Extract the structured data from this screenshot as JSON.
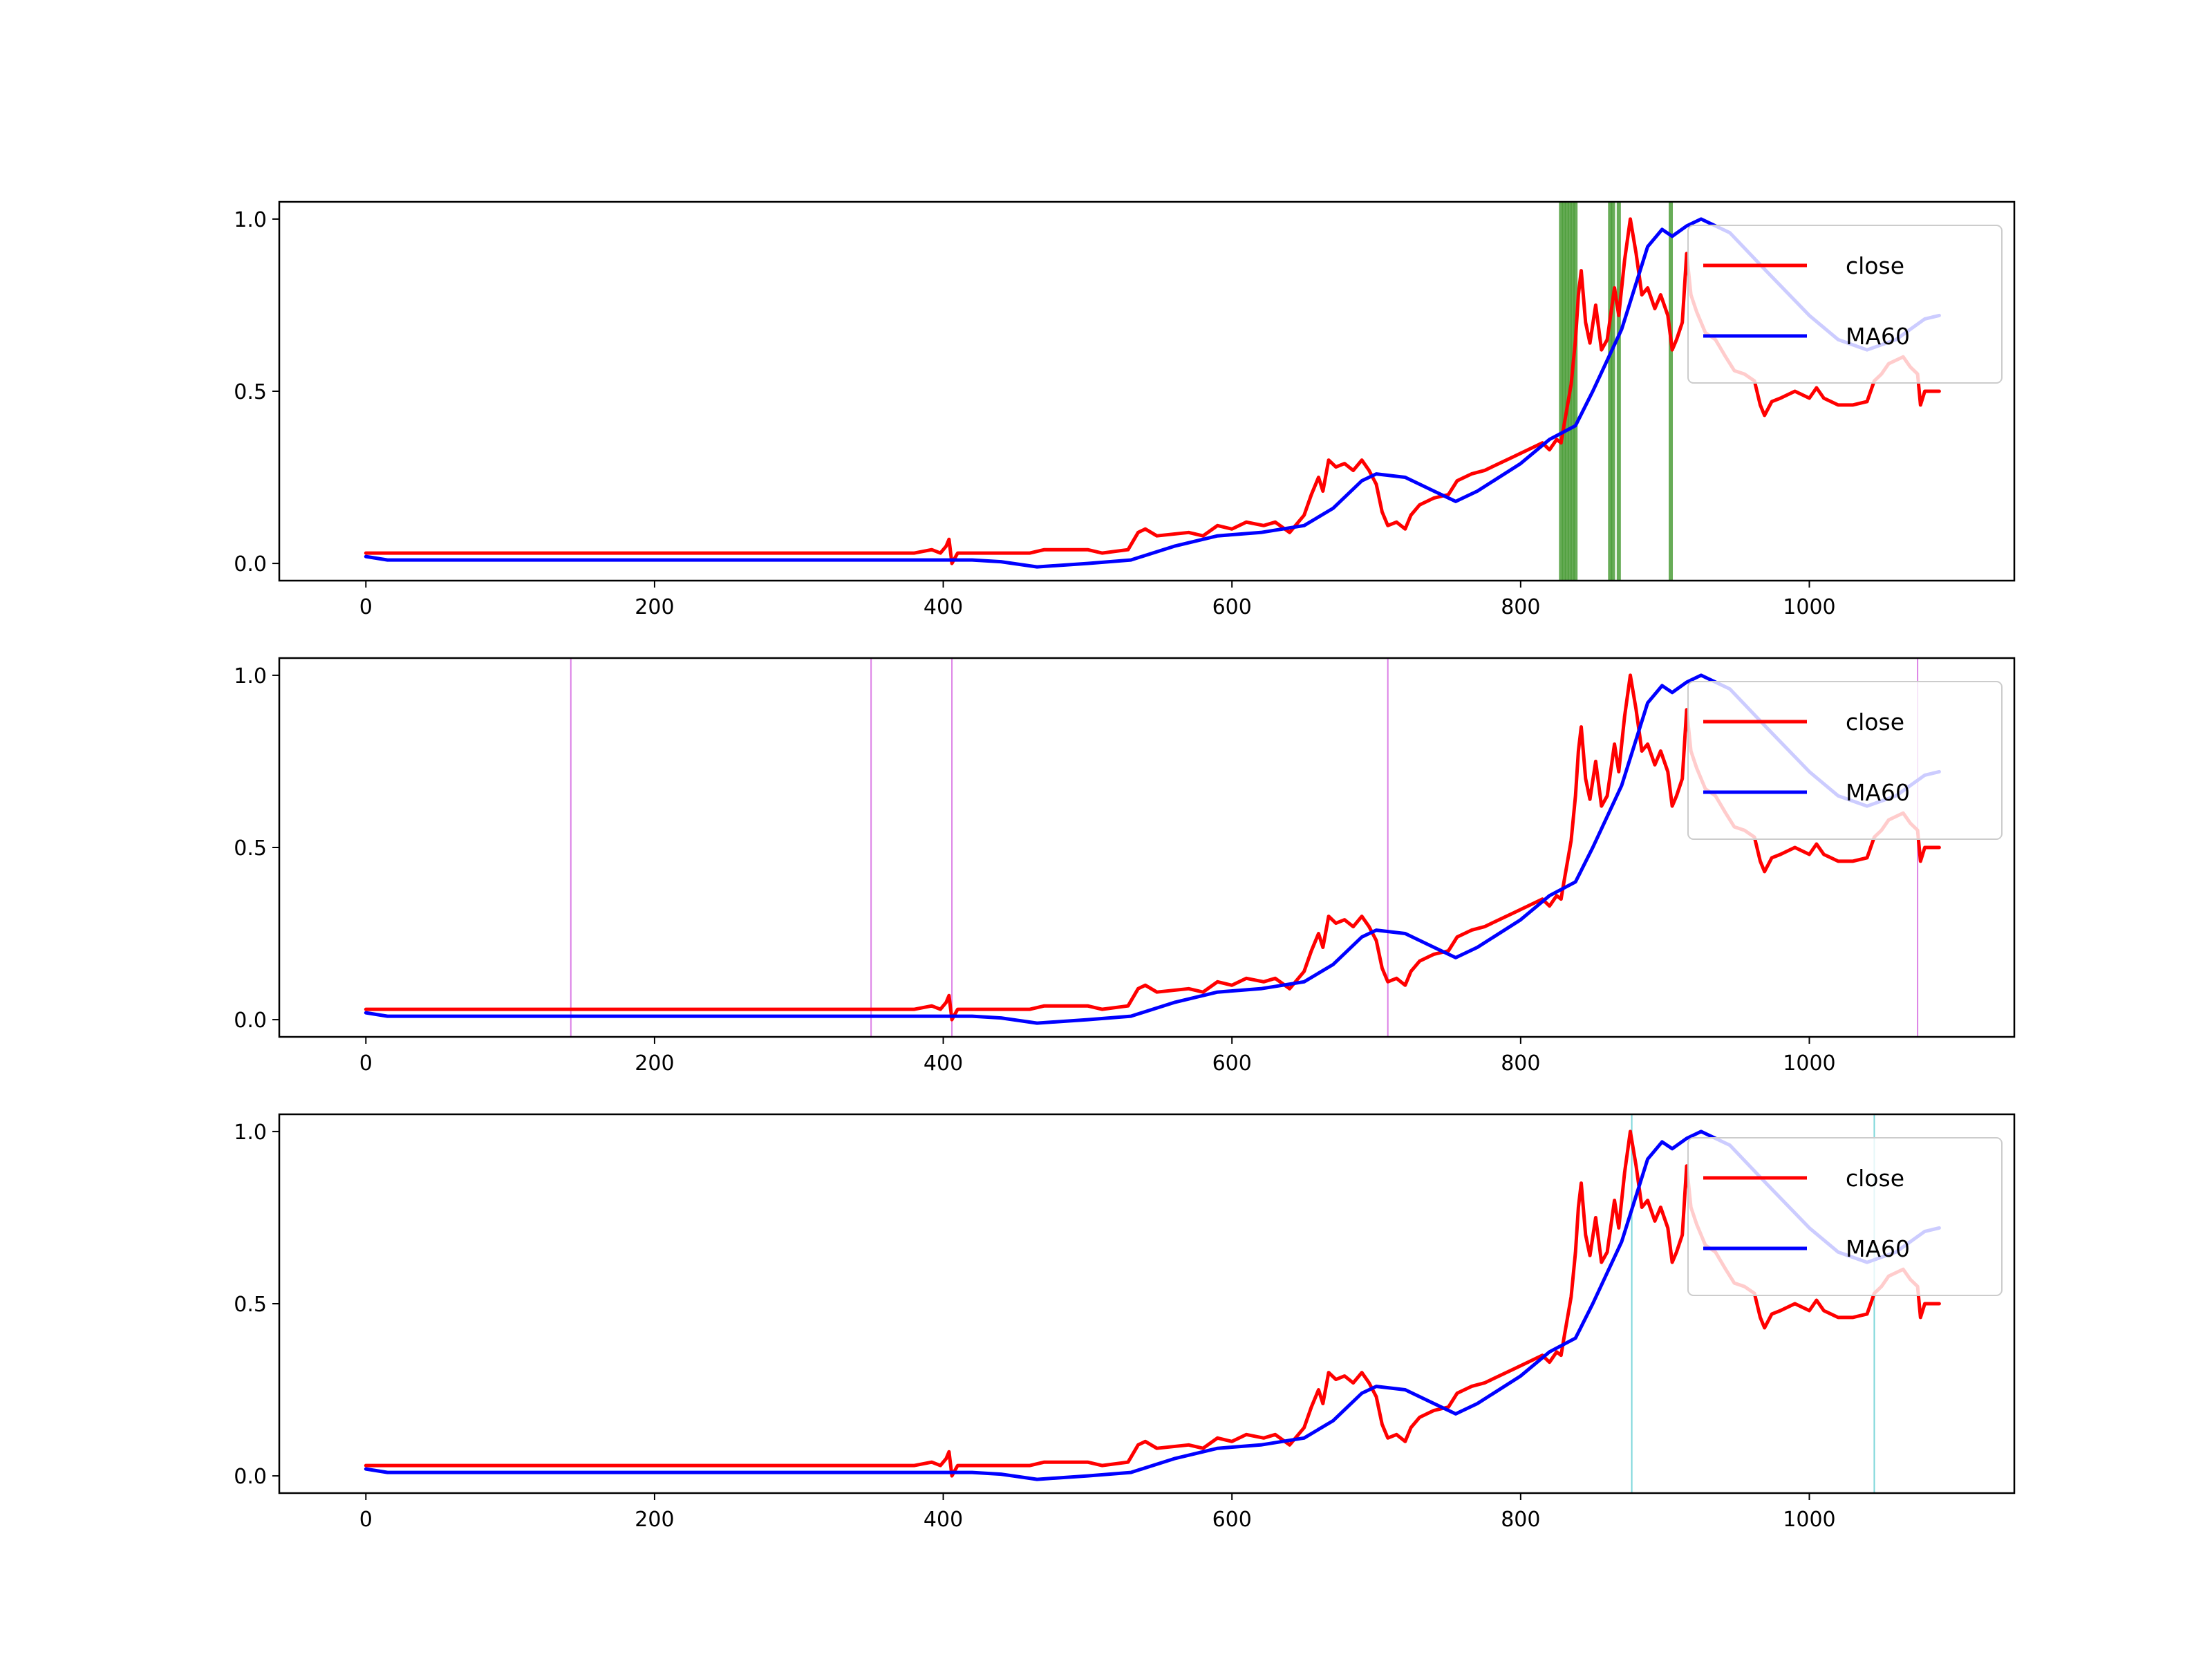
{
  "chart_data": [
    {
      "type": "line",
      "xlim": [
        -60,
        1142
      ],
      "ylim": [
        -0.05,
        1.05
      ],
      "xticks": [
        0,
        200,
        400,
        600,
        800,
        1000
      ],
      "xtick_labels": [
        "0",
        "200",
        "400",
        "600",
        "800",
        "1000"
      ],
      "yticks": [
        0.0,
        0.5,
        1.0
      ],
      "ytick_labels": [
        "0.0",
        "0.5",
        "1.0"
      ],
      "grid": false,
      "legend": "upper right",
      "highlight_color": "#4c9e3a",
      "highlight_x": [
        828,
        830,
        832,
        834,
        836,
        838,
        862,
        864,
        868,
        904
      ],
      "series": [
        {
          "name": "close",
          "color": "#ff0000"
        },
        {
          "name": "MA60",
          "color": "#0000ff"
        }
      ]
    },
    {
      "type": "line",
      "xlim": [
        -60,
        1142
      ],
      "ylim": [
        -0.05,
        1.05
      ],
      "xticks": [
        0,
        200,
        400,
        600,
        800,
        1000
      ],
      "xtick_labels": [
        "0",
        "200",
        "400",
        "600",
        "800",
        "1000"
      ],
      "yticks": [
        0.0,
        0.5,
        1.0
      ],
      "ytick_labels": [
        "0.0",
        "0.5",
        "1.0"
      ],
      "grid": false,
      "legend": "upper right",
      "highlight_color": "#d873e3",
      "highlight_x": [
        142,
        350,
        406,
        708,
        1075
      ],
      "series": [
        {
          "name": "close",
          "color": "#ff0000"
        },
        {
          "name": "MA60",
          "color": "#0000ff"
        }
      ]
    },
    {
      "type": "line",
      "xlim": [
        -60,
        1142
      ],
      "ylim": [
        -0.05,
        1.05
      ],
      "xticks": [
        0,
        200,
        400,
        600,
        800,
        1000
      ],
      "xtick_labels": [
        "0",
        "200",
        "400",
        "600",
        "800",
        "1000"
      ],
      "yticks": [
        0.0,
        0.5,
        1.0
      ],
      "ytick_labels": [
        "0.0",
        "0.5",
        "1.0"
      ],
      "grid": false,
      "legend": "upper right",
      "highlight_color": "#6fd3d6",
      "highlight_x": [
        877,
        1045
      ],
      "series": [
        {
          "name": "close",
          "color": "#ff0000"
        },
        {
          "name": "MA60",
          "color": "#0000ff"
        }
      ]
    }
  ],
  "series_values": {
    "close": [
      [
        0,
        0.03
      ],
      [
        380,
        0.03
      ],
      [
        392,
        0.04
      ],
      [
        398,
        0.03
      ],
      [
        402,
        0.05
      ],
      [
        404,
        0.07
      ],
      [
        406,
        0.0
      ],
      [
        410,
        0.03
      ],
      [
        460,
        0.03
      ],
      [
        470,
        0.04
      ],
      [
        500,
        0.04
      ],
      [
        510,
        0.03
      ],
      [
        528,
        0.04
      ],
      [
        535,
        0.09
      ],
      [
        540,
        0.1
      ],
      [
        548,
        0.08
      ],
      [
        570,
        0.09
      ],
      [
        580,
        0.08
      ],
      [
        590,
        0.11
      ],
      [
        600,
        0.1
      ],
      [
        610,
        0.12
      ],
      [
        622,
        0.11
      ],
      [
        630,
        0.12
      ],
      [
        640,
        0.09
      ],
      [
        650,
        0.14
      ],
      [
        655,
        0.2
      ],
      [
        660,
        0.25
      ],
      [
        663,
        0.21
      ],
      [
        667,
        0.3
      ],
      [
        672,
        0.28
      ],
      [
        678,
        0.29
      ],
      [
        684,
        0.27
      ],
      [
        690,
        0.3
      ],
      [
        695,
        0.27
      ],
      [
        700,
        0.23
      ],
      [
        704,
        0.15
      ],
      [
        708,
        0.11
      ],
      [
        714,
        0.12
      ],
      [
        720,
        0.1
      ],
      [
        724,
        0.14
      ],
      [
        730,
        0.17
      ],
      [
        740,
        0.19
      ],
      [
        750,
        0.2
      ],
      [
        756,
        0.24
      ],
      [
        766,
        0.26
      ],
      [
        775,
        0.27
      ],
      [
        785,
        0.29
      ],
      [
        795,
        0.31
      ],
      [
        805,
        0.33
      ],
      [
        815,
        0.35
      ],
      [
        820,
        0.33
      ],
      [
        825,
        0.36
      ],
      [
        828,
        0.35
      ],
      [
        830,
        0.4
      ],
      [
        835,
        0.52
      ],
      [
        838,
        0.65
      ],
      [
        840,
        0.78
      ],
      [
        842,
        0.85
      ],
      [
        845,
        0.7
      ],
      [
        848,
        0.64
      ],
      [
        852,
        0.75
      ],
      [
        856,
        0.62
      ],
      [
        860,
        0.65
      ],
      [
        865,
        0.8
      ],
      [
        868,
        0.72
      ],
      [
        872,
        0.88
      ],
      [
        876,
        1.0
      ],
      [
        880,
        0.9
      ],
      [
        884,
        0.78
      ],
      [
        888,
        0.8
      ],
      [
        893,
        0.74
      ],
      [
        897,
        0.78
      ],
      [
        902,
        0.72
      ],
      [
        905,
        0.62
      ],
      [
        908,
        0.65
      ],
      [
        912,
        0.7
      ],
      [
        915,
        0.9
      ],
      [
        918,
        0.78
      ],
      [
        922,
        0.73
      ],
      [
        928,
        0.67
      ],
      [
        935,
        0.65
      ],
      [
        942,
        0.6
      ],
      [
        948,
        0.56
      ],
      [
        955,
        0.55
      ],
      [
        962,
        0.53
      ],
      [
        966,
        0.46
      ],
      [
        969,
        0.43
      ],
      [
        974,
        0.47
      ],
      [
        980,
        0.48
      ],
      [
        990,
        0.5
      ],
      [
        1000,
        0.48
      ],
      [
        1005,
        0.51
      ],
      [
        1010,
        0.48
      ],
      [
        1020,
        0.46
      ],
      [
        1030,
        0.46
      ],
      [
        1040,
        0.47
      ],
      [
        1045,
        0.53
      ],
      [
        1050,
        0.55
      ],
      [
        1055,
        0.58
      ],
      [
        1065,
        0.6
      ],
      [
        1070,
        0.57
      ],
      [
        1075,
        0.55
      ],
      [
        1077,
        0.46
      ],
      [
        1080,
        0.5
      ],
      [
        1090,
        0.5
      ]
    ],
    "MA60": [
      [
        0,
        0.02
      ],
      [
        15,
        0.01
      ],
      [
        350,
        0.01
      ],
      [
        420,
        0.01
      ],
      [
        440,
        0.005
      ],
      [
        465,
        -0.01
      ],
      [
        500,
        0.0
      ],
      [
        530,
        0.01
      ],
      [
        560,
        0.05
      ],
      [
        590,
        0.08
      ],
      [
        620,
        0.09
      ],
      [
        650,
        0.11
      ],
      [
        670,
        0.16
      ],
      [
        690,
        0.24
      ],
      [
        700,
        0.26
      ],
      [
        720,
        0.25
      ],
      [
        740,
        0.21
      ],
      [
        755,
        0.18
      ],
      [
        770,
        0.21
      ],
      [
        800,
        0.29
      ],
      [
        820,
        0.36
      ],
      [
        838,
        0.4
      ],
      [
        850,
        0.5
      ],
      [
        870,
        0.68
      ],
      [
        888,
        0.92
      ],
      [
        898,
        0.97
      ],
      [
        905,
        0.95
      ],
      [
        915,
        0.98
      ],
      [
        925,
        1.0
      ],
      [
        945,
        0.96
      ],
      [
        970,
        0.85
      ],
      [
        1000,
        0.72
      ],
      [
        1020,
        0.65
      ],
      [
        1040,
        0.62
      ],
      [
        1060,
        0.65
      ],
      [
        1080,
        0.71
      ],
      [
        1090,
        0.72
      ]
    ]
  }
}
